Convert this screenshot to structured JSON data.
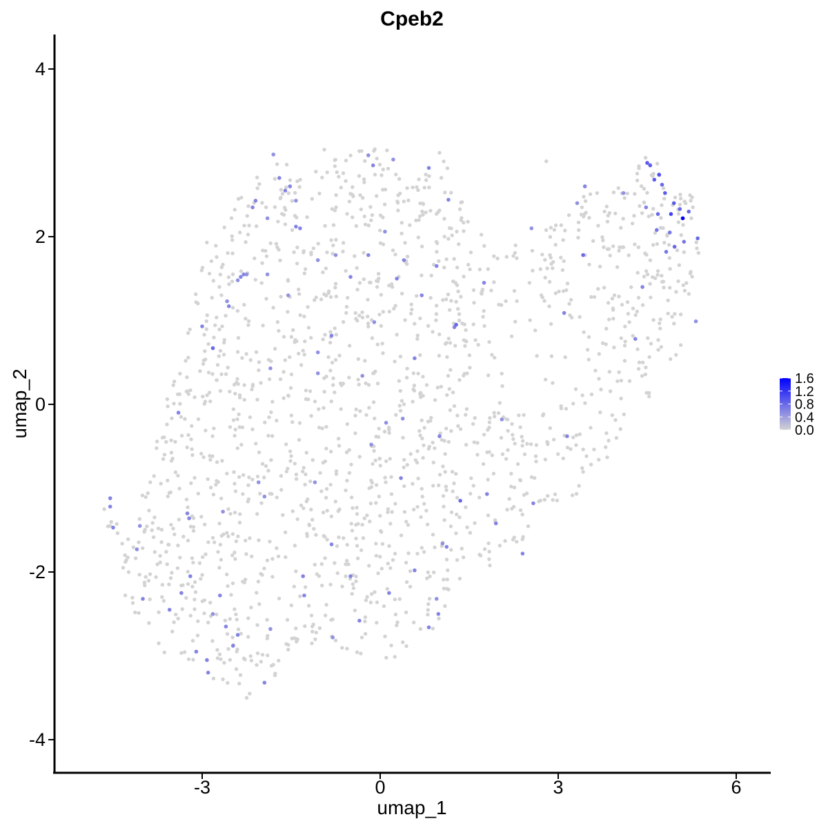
{
  "chart_data": {
    "type": "scatter",
    "title": "Cpeb2",
    "xlabel": "umap_1",
    "ylabel": "umap_2",
    "xlim": [
      -5.4,
      6.6
    ],
    "ylim": [
      -4.35,
      4.4
    ],
    "xticks": [
      -3,
      0,
      3,
      6
    ],
    "xtick_labels": [
      "-3",
      "0",
      "3",
      "6"
    ],
    "yticks": [
      -4,
      -2,
      0,
      2,
      4
    ],
    "ytick_labels": [
      "-4",
      "-2",
      "0",
      "2",
      "4"
    ],
    "grid": false,
    "color_scale": {
      "low_color": "#d3d3d3",
      "high_color": "#0000ff",
      "min": 0.0,
      "max": 1.6,
      "ticks": [
        0.0,
        0.4,
        0.8,
        1.2,
        1.6
      ],
      "tick_labels": [
        "0.0",
        "0.4",
        "0.8",
        "1.2",
        "1.6"
      ],
      "placement": "right"
    },
    "points_expressed": [
      {
        "x": 5.1,
        "y": 2.22,
        "v": 1.6
      },
      {
        "x": 4.9,
        "y": 2.27,
        "v": 1.1
      },
      {
        "x": 4.7,
        "y": 2.74,
        "v": 1.0
      },
      {
        "x": 4.5,
        "y": 2.88,
        "v": 0.9
      },
      {
        "x": 4.55,
        "y": 2.85,
        "v": 0.9
      },
      {
        "x": 4.62,
        "y": 2.68,
        "v": 0.9
      },
      {
        "x": 4.75,
        "y": 2.62,
        "v": 0.8
      },
      {
        "x": 4.8,
        "y": 2.52,
        "v": 0.9
      },
      {
        "x": 4.95,
        "y": 2.4,
        "v": 0.9
      },
      {
        "x": 5.05,
        "y": 2.33,
        "v": 0.8
      },
      {
        "x": 5.2,
        "y": 2.3,
        "v": 0.8
      },
      {
        "x": 4.68,
        "y": 2.27,
        "v": 0.8
      },
      {
        "x": 4.88,
        "y": 2.05,
        "v": 0.7
      },
      {
        "x": 4.96,
        "y": 1.88,
        "v": 0.8
      },
      {
        "x": 5.12,
        "y": 1.94,
        "v": 0.7
      },
      {
        "x": 5.35,
        "y": 1.98,
        "v": 0.8
      },
      {
        "x": 4.82,
        "y": 1.82,
        "v": 0.7
      },
      {
        "x": 4.66,
        "y": 2.08,
        "v": 0.7
      },
      {
        "x": 4.48,
        "y": 2.35,
        "v": 0.6
      },
      {
        "x": 4.42,
        "y": 1.4,
        "v": 0.6
      },
      {
        "x": 4.3,
        "y": 0.78,
        "v": 0.6
      },
      {
        "x": 5.32,
        "y": 0.99,
        "v": 0.5
      },
      {
        "x": 4.1,
        "y": 2.52,
        "v": 0.5
      },
      {
        "x": 3.45,
        "y": 2.6,
        "v": 0.6
      },
      {
        "x": 3.32,
        "y": 2.4,
        "v": 0.5
      },
      {
        "x": 3.42,
        "y": 1.78,
        "v": 0.8
      },
      {
        "x": 2.55,
        "y": 2.1,
        "v": 0.5
      },
      {
        "x": 3.1,
        "y": 1.09,
        "v": 0.6
      },
      {
        "x": 1.75,
        "y": 1.45,
        "v": 0.6
      },
      {
        "x": 1.15,
        "y": 2.44,
        "v": 0.6
      },
      {
        "x": 0.82,
        "y": 2.82,
        "v": 0.6
      },
      {
        "x": 0.22,
        "y": 2.92,
        "v": 0.5
      },
      {
        "x": -0.12,
        "y": 2.85,
        "v": 0.6
      },
      {
        "x": -0.2,
        "y": 2.97,
        "v": 0.5
      },
      {
        "x": 0.08,
        "y": 2.06,
        "v": 0.5
      },
      {
        "x": -0.2,
        "y": 1.78,
        "v": 0.6
      },
      {
        "x": 0.4,
        "y": 1.72,
        "v": 0.6
      },
      {
        "x": 0.28,
        "y": 1.5,
        "v": 0.6
      },
      {
        "x": 0.7,
        "y": 1.3,
        "v": 0.6
      },
      {
        "x": 0.95,
        "y": 1.65,
        "v": 0.6
      },
      {
        "x": 1.28,
        "y": 0.95,
        "v": 0.8
      },
      {
        "x": 1.25,
        "y": 0.92,
        "v": 0.6
      },
      {
        "x": -0.1,
        "y": 0.98,
        "v": 0.5
      },
      {
        "x": -0.82,
        "y": 0.82,
        "v": 0.6
      },
      {
        "x": -0.5,
        "y": 1.52,
        "v": 0.6
      },
      {
        "x": -0.75,
        "y": 1.78,
        "v": 0.5
      },
      {
        "x": -1.05,
        "y": 1.72,
        "v": 0.5
      },
      {
        "x": -1.35,
        "y": 2.1,
        "v": 0.6
      },
      {
        "x": -1.42,
        "y": 2.12,
        "v": 0.6
      },
      {
        "x": -1.52,
        "y": 2.6,
        "v": 0.6
      },
      {
        "x": -1.6,
        "y": 2.55,
        "v": 0.6
      },
      {
        "x": -1.7,
        "y": 2.7,
        "v": 0.6
      },
      {
        "x": -1.9,
        "y": 2.22,
        "v": 0.5
      },
      {
        "x": -2.1,
        "y": 2.43,
        "v": 0.6
      },
      {
        "x": -2.15,
        "y": 2.35,
        "v": 0.6
      },
      {
        "x": -1.8,
        "y": 2.98,
        "v": 0.5
      },
      {
        "x": -1.42,
        "y": 2.43,
        "v": 0.5
      },
      {
        "x": -2.25,
        "y": 1.55,
        "v": 0.5
      },
      {
        "x": -2.4,
        "y": 1.48,
        "v": 0.5
      },
      {
        "x": -2.3,
        "y": 1.55,
        "v": 0.6
      },
      {
        "x": -1.9,
        "y": 1.55,
        "v": 0.5
      },
      {
        "x": -1.55,
        "y": 1.3,
        "v": 0.5
      },
      {
        "x": -2.58,
        "y": 1.23,
        "v": 0.5
      },
      {
        "x": -2.55,
        "y": 1.17,
        "v": 0.6
      },
      {
        "x": -2.35,
        "y": 1.52,
        "v": 0.6
      },
      {
        "x": -3.0,
        "y": 0.93,
        "v": 0.6
      },
      {
        "x": -2.82,
        "y": 0.67,
        "v": 0.8
      },
      {
        "x": -1.85,
        "y": 0.43,
        "v": 0.5
      },
      {
        "x": -1.05,
        "y": 0.37,
        "v": 0.5
      },
      {
        "x": -0.3,
        "y": 0.34,
        "v": 0.5
      },
      {
        "x": 0.58,
        "y": 0.55,
        "v": 0.6
      },
      {
        "x": -1.05,
        "y": 0.62,
        "v": 0.5
      },
      {
        "x": -3.4,
        "y": -0.1,
        "v": 0.6
      },
      {
        "x": 0.1,
        "y": -0.22,
        "v": 0.5
      },
      {
        "x": -0.15,
        "y": -0.48,
        "v": 0.5
      },
      {
        "x": 1.0,
        "y": -0.38,
        "v": 0.6
      },
      {
        "x": 2.05,
        "y": -0.18,
        "v": 0.5
      },
      {
        "x": 3.15,
        "y": -0.38,
        "v": 0.6
      },
      {
        "x": 0.35,
        "y": -0.88,
        "v": 0.6
      },
      {
        "x": 1.35,
        "y": -1.15,
        "v": 0.8
      },
      {
        "x": 1.8,
        "y": -1.07,
        "v": 0.6
      },
      {
        "x": 1.95,
        "y": -1.42,
        "v": 0.6
      },
      {
        "x": 2.58,
        "y": -1.18,
        "v": 0.6
      },
      {
        "x": 2.4,
        "y": -1.78,
        "v": 0.6
      },
      {
        "x": 1.12,
        "y": -1.7,
        "v": 0.6
      },
      {
        "x": 1.05,
        "y": -1.66,
        "v": 0.5
      },
      {
        "x": 0.58,
        "y": -1.98,
        "v": 0.6
      },
      {
        "x": 0.15,
        "y": -2.25,
        "v": 0.6
      },
      {
        "x": 0.95,
        "y": -2.32,
        "v": 0.5
      },
      {
        "x": 0.98,
        "y": -2.5,
        "v": 0.6
      },
      {
        "x": 0.82,
        "y": -2.66,
        "v": 0.6
      },
      {
        "x": -0.35,
        "y": -2.58,
        "v": 0.6
      },
      {
        "x": -0.5,
        "y": -2.05,
        "v": 0.6
      },
      {
        "x": -0.8,
        "y": -2.78,
        "v": 0.5
      },
      {
        "x": -1.3,
        "y": -2.05,
        "v": 0.6
      },
      {
        "x": -1.28,
        "y": -2.28,
        "v": 0.6
      },
      {
        "x": -0.82,
        "y": -1.67,
        "v": 0.6
      },
      {
        "x": -1.85,
        "y": -2.68,
        "v": 0.5
      },
      {
        "x": -1.95,
        "y": -3.32,
        "v": 0.6
      },
      {
        "x": -2.4,
        "y": -2.75,
        "v": 0.6
      },
      {
        "x": -2.48,
        "y": -2.88,
        "v": 0.6
      },
      {
        "x": -2.6,
        "y": -2.65,
        "v": 0.6
      },
      {
        "x": -2.7,
        "y": -2.28,
        "v": 0.6
      },
      {
        "x": -2.82,
        "y": -2.5,
        "v": 0.5
      },
      {
        "x": -3.2,
        "y": -2.05,
        "v": 0.6
      },
      {
        "x": -3.35,
        "y": -2.25,
        "v": 0.6
      },
      {
        "x": -3.55,
        "y": -2.45,
        "v": 0.6
      },
      {
        "x": -3.1,
        "y": -2.95,
        "v": 0.6
      },
      {
        "x": -2.92,
        "y": -3.05,
        "v": 0.6
      },
      {
        "x": -2.9,
        "y": -3.2,
        "v": 0.6
      },
      {
        "x": -3.25,
        "y": -1.3,
        "v": 0.6
      },
      {
        "x": -3.22,
        "y": -1.36,
        "v": 0.6
      },
      {
        "x": -4.0,
        "y": -2.32,
        "v": 0.6
      },
      {
        "x": -4.1,
        "y": -1.73,
        "v": 0.5
      },
      {
        "x": -4.05,
        "y": -1.45,
        "v": 0.5
      },
      {
        "x": -4.55,
        "y": -1.12,
        "v": 0.6
      },
      {
        "x": -4.55,
        "y": -1.22,
        "v": 0.6
      },
      {
        "x": -4.5,
        "y": -1.47,
        "v": 0.6
      },
      {
        "x": -2.05,
        "y": -0.93,
        "v": 0.5
      },
      {
        "x": -1.95,
        "y": -1.1,
        "v": 0.5
      },
      {
        "x": -1.1,
        "y": -0.93,
        "v": 0.5
      },
      {
        "x": 0.38,
        "y": -0.17,
        "v": 0.5
      },
      {
        "x": -2.65,
        "y": -1.28,
        "v": 0.5
      }
    ]
  }
}
